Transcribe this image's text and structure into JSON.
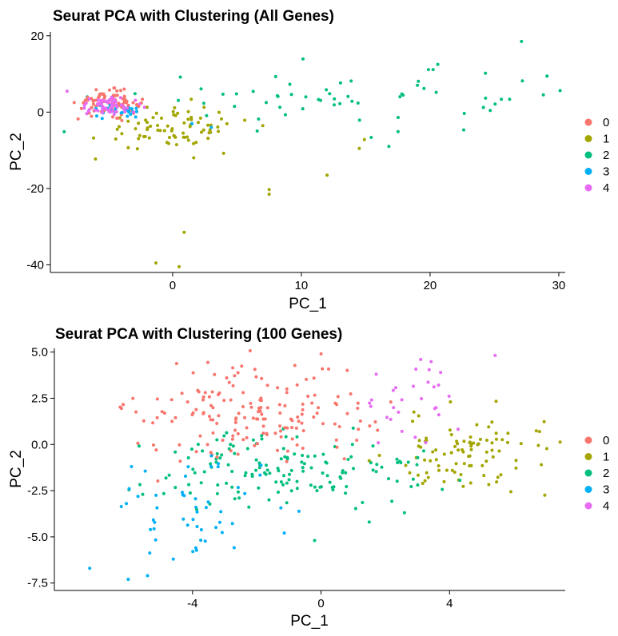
{
  "cluster_colors": {
    "0": "#F8766D",
    "1": "#A3A500",
    "2": "#00BF7D",
    "3": "#00B0F6",
    "4": "#E76BF3"
  },
  "legend_labels": [
    "0",
    "1",
    "2",
    "3",
    "4"
  ],
  "chart_data": [
    {
      "type": "scatter",
      "title": "Seurat PCA with Clustering (All Genes)",
      "xlabel": "PC_1",
      "ylabel": "PC_2",
      "xlim": [
        -9.5,
        30.5
      ],
      "ylim": [
        -42,
        21
      ],
      "xticks": [
        0,
        10,
        20,
        30
      ],
      "xtick_labels": [
        "0",
        "10",
        "20",
        "30"
      ],
      "yticks": [
        -40,
        -20,
        0,
        20
      ],
      "ytick_labels": [
        "-40",
        "-20",
        "0",
        "20"
      ],
      "legend_position": "right",
      "grid": false,
      "clusters": [
        {
          "name": "0",
          "center": [
            -5,
            2.5
          ],
          "spread": [
            1.2,
            1.5
          ],
          "n": 100
        },
        {
          "name": "1",
          "center": [
            0,
            -4
          ],
          "spread": [
            3,
            3
          ],
          "n": 80
        },
        {
          "name": "2",
          "center": [
            15,
            3
          ],
          "spread": [
            9,
            4
          ],
          "n": 60
        },
        {
          "name": "3",
          "center": [
            -4.2,
            0
          ],
          "spread": [
            1.0,
            0.8
          ],
          "n": 30
        },
        {
          "name": "4",
          "center": [
            -4.8,
            1.8
          ],
          "spread": [
            1.2,
            1.2
          ],
          "n": 60
        }
      ],
      "points": [
        {
          "x": 0.5,
          "y": -40.5,
          "cluster": "1"
        },
        {
          "x": -1.3,
          "y": -39.5,
          "cluster": "1"
        },
        {
          "x": 0.9,
          "y": -31.5,
          "cluster": "1"
        },
        {
          "x": 7.5,
          "y": -21.5,
          "cluster": "1"
        },
        {
          "x": 7.5,
          "y": -20.3,
          "cluster": "1"
        },
        {
          "x": 12,
          "y": -16.5,
          "cluster": "1"
        },
        {
          "x": 27.1,
          "y": 18.5,
          "cluster": "2"
        },
        {
          "x": 20.6,
          "y": 12.5,
          "cluster": "2"
        },
        {
          "x": 24.3,
          "y": 10.2,
          "cluster": "2"
        },
        {
          "x": 28.8,
          "y": 4.5,
          "cluster": "2"
        },
        {
          "x": 14.5,
          "y": -9.5,
          "cluster": "1"
        },
        {
          "x": 14.9,
          "y": -7.2,
          "cluster": "1"
        },
        {
          "x": 16.8,
          "y": -9,
          "cluster": "2"
        },
        {
          "x": 9.1,
          "y": 7.3,
          "cluster": "2"
        },
        {
          "x": 1.5,
          "y": -3,
          "cluster": "3"
        },
        {
          "x": 3,
          "y": -4,
          "cluster": "3"
        },
        {
          "x": -8.2,
          "y": 5.5,
          "cluster": "4"
        }
      ]
    },
    {
      "type": "scatter",
      "title": "Seurat PCA with Clustering (100 Genes)",
      "xlabel": "PC_1",
      "ylabel": "PC_2",
      "xlim": [
        -8.3,
        7.6
      ],
      "ylim": [
        -7.9,
        5.2
      ],
      "xticks": [
        -4,
        0,
        4
      ],
      "xtick_labels": [
        "-4",
        "0",
        "4"
      ],
      "yticks": [
        -7.5,
        -5,
        -2.5,
        0,
        2.5,
        5
      ],
      "ytick_labels": [
        "-7.5",
        "-5.0",
        "-2.5",
        "0.0",
        "2.5",
        "5.0"
      ],
      "legend_position": "right",
      "grid": false,
      "clusters": [
        {
          "name": "0",
          "center": [
            -2.2,
            1.5
          ],
          "spread": [
            1.8,
            1.3
          ],
          "n": 170
        },
        {
          "name": "1",
          "center": [
            4.6,
            -0.6
          ],
          "spread": [
            1.3,
            1.1
          ],
          "n": 95
        },
        {
          "name": "2",
          "center": [
            -0.8,
            -1.4
          ],
          "spread": [
            2.1,
            1.1
          ],
          "n": 150
        },
        {
          "name": "3",
          "center": [
            -4,
            -3.5
          ],
          "spread": [
            1.4,
            1.6
          ],
          "n": 50
        },
        {
          "name": "4",
          "center": [
            3,
            2.5
          ],
          "spread": [
            1.0,
            1.2
          ],
          "n": 30
        }
      ],
      "points": [
        {
          "x": -7.2,
          "y": -6.7,
          "cluster": "3"
        },
        {
          "x": -6.0,
          "y": -7.3,
          "cluster": "3"
        },
        {
          "x": -5.4,
          "y": -7.1,
          "cluster": "3"
        },
        {
          "x": -5.9,
          "y": -1.2,
          "cluster": "3"
        },
        {
          "x": 0,
          "y": 4.9,
          "cluster": "0"
        },
        {
          "x": 6.8,
          "y": 0.7,
          "cluster": "1"
        },
        {
          "x": 3.1,
          "y": 4.6,
          "cluster": "4"
        },
        {
          "x": 1.5,
          "y": -4.2,
          "cluster": "2"
        },
        {
          "x": -0.2,
          "y": -5.2,
          "cluster": "2"
        },
        {
          "x": -4.6,
          "y": -6.2,
          "cluster": "3"
        }
      ]
    }
  ]
}
